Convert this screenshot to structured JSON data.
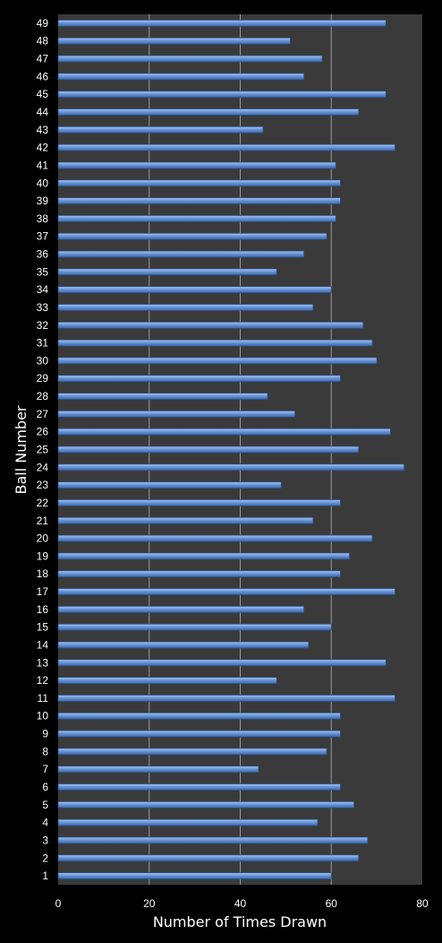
{
  "chart_data": {
    "type": "bar",
    "orientation": "horizontal",
    "xlabel": "Number of Times Drawn",
    "ylabel": "Ball Number",
    "xlim": [
      0,
      80
    ],
    "xticks": [
      0,
      20,
      40,
      60,
      80
    ],
    "grid": "vertical",
    "legend": "none",
    "colors": {
      "background": "#000000",
      "plot_area": "#3a3a3a",
      "bar_fill": "#6a96d8",
      "bar_edge": "#2b4f86",
      "gridline": "#9a9a9a",
      "text": "#ffffff"
    },
    "categories": [
      "1",
      "2",
      "3",
      "4",
      "5",
      "6",
      "7",
      "8",
      "9",
      "10",
      "11",
      "12",
      "13",
      "14",
      "15",
      "16",
      "17",
      "18",
      "19",
      "20",
      "21",
      "22",
      "23",
      "24",
      "25",
      "26",
      "27",
      "28",
      "29",
      "30",
      "31",
      "32",
      "33",
      "34",
      "35",
      "36",
      "37",
      "38",
      "39",
      "40",
      "41",
      "42",
      "43",
      "44",
      "45",
      "46",
      "47",
      "48",
      "49"
    ],
    "values": [
      60,
      66,
      68,
      57,
      65,
      62,
      44,
      59,
      62,
      62,
      74,
      48,
      72,
      55,
      60,
      54,
      74,
      62,
      64,
      69,
      56,
      62,
      49,
      76,
      66,
      73,
      52,
      46,
      62,
      70,
      69,
      67,
      56,
      60,
      48,
      54,
      59,
      61,
      62,
      62,
      61,
      74,
      45,
      66,
      72,
      54,
      58,
      51,
      72
    ]
  }
}
